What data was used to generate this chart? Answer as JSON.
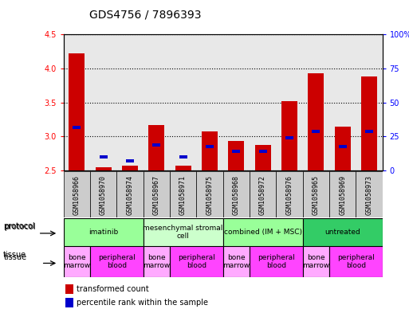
{
  "title": "GDS4756 / 7896393",
  "samples": [
    "GSM1058966",
    "GSM1058970",
    "GSM1058974",
    "GSM1058967",
    "GSM1058971",
    "GSM1058975",
    "GSM1058968",
    "GSM1058972",
    "GSM1058976",
    "GSM1058965",
    "GSM1058969",
    "GSM1058973"
  ],
  "red_values": [
    4.22,
    2.55,
    2.57,
    3.17,
    2.57,
    3.08,
    2.93,
    2.88,
    3.52,
    3.93,
    3.15,
    3.88
  ],
  "blue_values": [
    3.13,
    2.7,
    2.64,
    2.88,
    2.7,
    2.85,
    2.78,
    2.78,
    2.98,
    3.08,
    2.85,
    3.08
  ],
  "ylim_left": [
    2.5,
    4.5
  ],
  "ylim_right": [
    0,
    100
  ],
  "yticks_left": [
    2.5,
    3.0,
    3.5,
    4.0,
    4.5
  ],
  "yticks_right": [
    0,
    25,
    50,
    75,
    100
  ],
  "ytick_labels_right": [
    "0",
    "25",
    "50",
    "75",
    "100%"
  ],
  "bar_color_red": "#cc0000",
  "bar_color_blue": "#0000cc",
  "protocol_groups": [
    {
      "label": "imatinib",
      "start": 0,
      "end": 3,
      "color": "#99ff99"
    },
    {
      "label": "mesenchymal stromal\ncell",
      "start": 3,
      "end": 6,
      "color": "#ccffcc"
    },
    {
      "label": "combined (IM + MSC)",
      "start": 6,
      "end": 9,
      "color": "#99ff99"
    },
    {
      "label": "untreated",
      "start": 9,
      "end": 12,
      "color": "#33cc66"
    }
  ],
  "tissue_groups": [
    {
      "label": "bone\nmarrow",
      "start": 0,
      "end": 1,
      "color": "#ffaaff"
    },
    {
      "label": "peripheral\nblood",
      "start": 1,
      "end": 3,
      "color": "#ff44ff"
    },
    {
      "label": "bone\nmarrow",
      "start": 3,
      "end": 4,
      "color": "#ffaaff"
    },
    {
      "label": "peripheral\nblood",
      "start": 4,
      "end": 6,
      "color": "#ff44ff"
    },
    {
      "label": "bone\nmarrow",
      "start": 6,
      "end": 7,
      "color": "#ffaaff"
    },
    {
      "label": "peripheral\nblood",
      "start": 7,
      "end": 9,
      "color": "#ff44ff"
    },
    {
      "label": "bone\nmarrow",
      "start": 9,
      "end": 10,
      "color": "#ffaaff"
    },
    {
      "label": "peripheral\nblood",
      "start": 10,
      "end": 12,
      "color": "#ff44ff"
    }
  ],
  "legend_red_label": "transformed count",
  "legend_blue_label": "percentile rank within the sample",
  "xlabel_protocol": "protocol",
  "xlabel_tissue": "tissue",
  "tick_fontsize": 7,
  "title_fontsize": 10,
  "sample_fontsize": 6
}
